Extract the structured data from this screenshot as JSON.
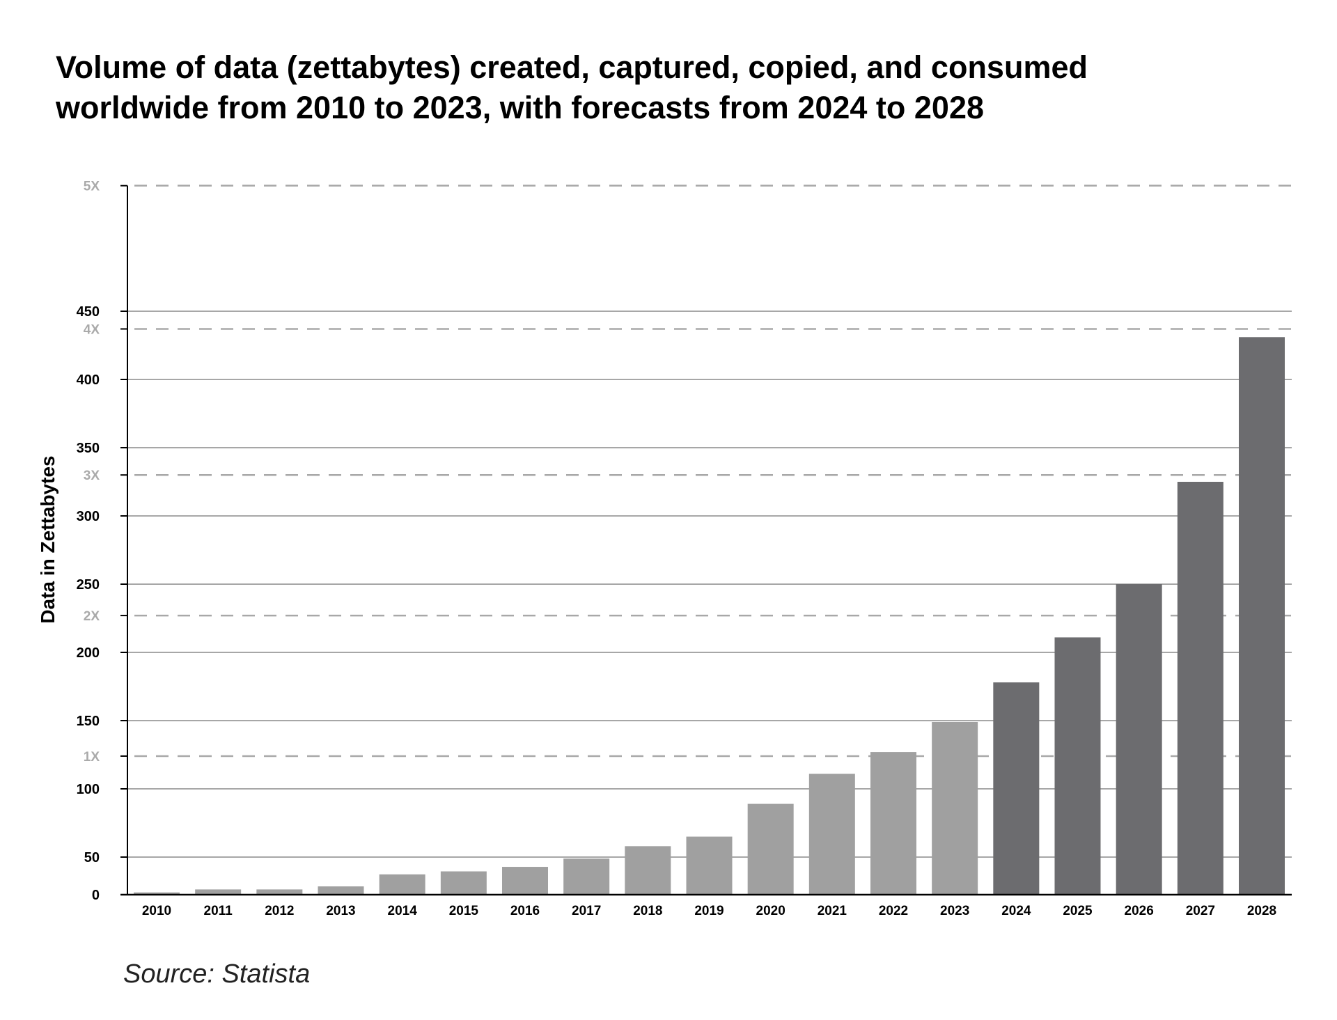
{
  "chart_data": {
    "type": "bar",
    "title_lines": [
      "Volume of data (zettabytes) created, captured, copied, and consumed",
      "worldwide from 2010 to 2023, with forecasts from 2024 to 2028"
    ],
    "xlabel": "",
    "ylabel": "Data in Zettabytes",
    "categories": [
      "2010",
      "2011",
      "2012",
      "2013",
      "2014",
      "2015",
      "2016",
      "2017",
      "2018",
      "2019",
      "2020",
      "2021",
      "2022",
      "2023",
      "2024",
      "2025",
      "2026",
      "2027",
      "2028"
    ],
    "values": [
      3,
      7,
      7,
      11,
      27,
      31,
      37,
      48,
      58,
      65,
      89,
      111,
      127,
      149,
      178,
      211,
      250,
      325,
      431
    ],
    "forecast_from": "2024",
    "y_ticks": [
      0,
      50,
      100,
      150,
      200,
      250,
      300,
      350,
      400,
      450
    ],
    "ylim": [
      0,
      545
    ],
    "reference_lines": [
      {
        "label": "1X",
        "value": 124
      },
      {
        "label": "2X",
        "value": 227
      },
      {
        "label": "3X",
        "value": 330
      },
      {
        "label": "4X",
        "value": 437
      },
      {
        "label": "5X",
        "value": 542
      }
    ],
    "grid": true,
    "colors": {
      "historical": "#a0a0a0",
      "forecast": "#6c6c6f",
      "grid": "#8a8a8a",
      "reference": "#a8a8a8"
    }
  },
  "source": "Source: Statista"
}
